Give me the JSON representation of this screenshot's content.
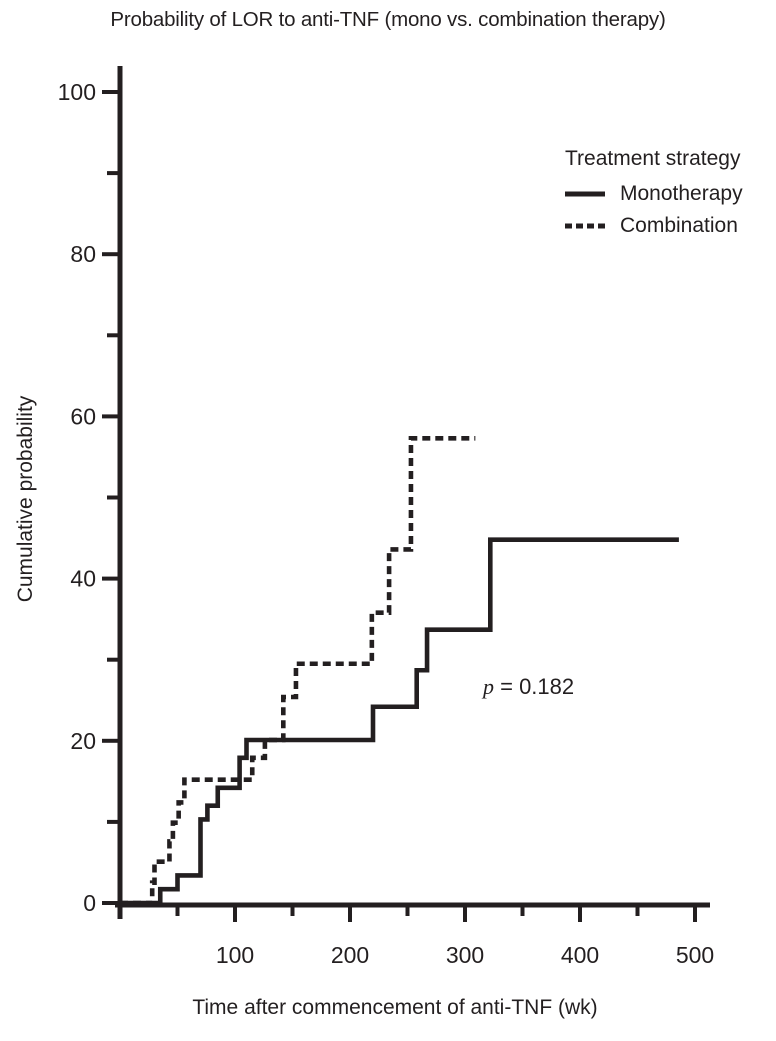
{
  "colors": {
    "ink": "#231f20",
    "background": "#ffffff"
  },
  "chart_data": {
    "type": "line",
    "subtype": "kaplan-meier-step",
    "title": "Probability of LOR to anti-TNF (mono vs. combination therapy)",
    "xlabel": "Time after commencement of anti-TNF (wk)",
    "ylabel": "Cumulative probability",
    "x_unit": "wk",
    "y_unit": "%",
    "xlim": [
      0,
      513
    ],
    "ylim": [
      0,
      103
    ],
    "grid": "off",
    "x_ticks_major": [
      100,
      200,
      300,
      400,
      500
    ],
    "x_ticks_minor": [
      50,
      150,
      250,
      350,
      450
    ],
    "y_ticks_major": [
      0,
      20,
      40,
      60,
      80,
      100
    ],
    "y_ticks_minor": [
      10,
      30,
      50,
      70,
      90
    ],
    "p_value": {
      "symbol": "p",
      "rest": " = 0.182"
    },
    "legend": {
      "title": "Treatment strategy",
      "position": "upper-right-inside",
      "items": [
        {
          "label": "Monotherapy",
          "style": "solid"
        },
        {
          "label": "Combination",
          "style": "dashed"
        }
      ]
    },
    "series": [
      {
        "name": "Monotherapy",
        "style": "solid",
        "events": [
          [
            35,
            1.7
          ],
          [
            50,
            3.4
          ],
          [
            70,
            10.3
          ],
          [
            76,
            12.0
          ],
          [
            85,
            14.2
          ],
          [
            104,
            17.9
          ],
          [
            110,
            20.1
          ],
          [
            220,
            24.2
          ],
          [
            258,
            28.7
          ],
          [
            267,
            33.7
          ],
          [
            322,
            44.8
          ]
        ],
        "end_time": 486
      },
      {
        "name": "Combination",
        "style": "dashed",
        "events": [
          [
            28,
            2.5
          ],
          [
            30,
            5.1
          ],
          [
            43,
            7.6
          ],
          [
            46,
            9.9
          ],
          [
            51,
            12.4
          ],
          [
            56,
            15.2
          ],
          [
            115,
            17.9
          ],
          [
            126,
            20.1
          ],
          [
            142,
            25.4
          ],
          [
            153,
            29.5
          ],
          [
            219,
            35.8
          ],
          [
            234,
            43.6
          ],
          [
            253,
            57.3
          ]
        ],
        "end_time": 309
      }
    ]
  }
}
